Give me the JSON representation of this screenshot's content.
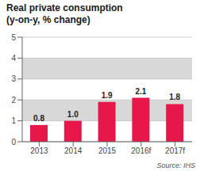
{
  "chart_data": {
    "type": "bar",
    "title": "Real private consumption",
    "subtitle": "(y-on-y, % change)",
    "categories": [
      "2013",
      "2014",
      "2015",
      "2016f",
      "2017f"
    ],
    "values": [
      0.8,
      1.0,
      1.9,
      2.1,
      1.8
    ],
    "value_labels": [
      "0.8",
      "1.0",
      "1.9",
      "2.1",
      "1.8"
    ],
    "data_labels": true,
    "color": "#e8174a",
    "ylim": [
      0,
      5
    ],
    "yticks": [
      0,
      1,
      2,
      3,
      4,
      5
    ],
    "grid": true,
    "annotations": [
      "Source: IHS"
    ]
  }
}
